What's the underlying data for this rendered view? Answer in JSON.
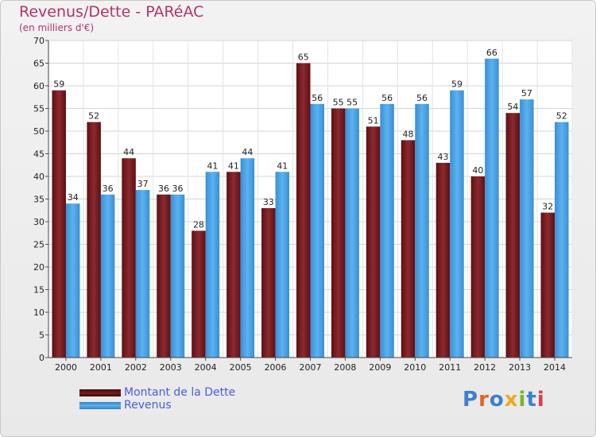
{
  "title": "Revenus/Dette - PARéAC",
  "subtitle": "(en milliers d'€)",
  "logo_text": "Proxiti",
  "colors": {
    "dette": "#7a1a1f",
    "revenus": "#4aa3e6",
    "title": "#b0346a",
    "legend_text": "#4a5de0"
  },
  "chart_data": {
    "type": "bar",
    "title": "Revenus/Dette - PARéAC",
    "subtitle": "(en milliers d'€)",
    "categories": [
      "2000",
      "2001",
      "2002",
      "2003",
      "2004",
      "2005",
      "2006",
      "2007",
      "2008",
      "2009",
      "2010",
      "2011",
      "2012",
      "2013",
      "2014"
    ],
    "series": [
      {
        "name": "Montant de la Dette",
        "values": [
          59,
          52,
          44,
          36,
          28,
          41,
          33,
          65,
          55,
          51,
          48,
          43,
          40,
          54,
          32
        ]
      },
      {
        "name": "Revenus",
        "values": [
          34,
          36,
          37,
          36,
          41,
          44,
          41,
          56,
          55,
          56,
          56,
          59,
          66,
          57,
          52
        ]
      }
    ],
    "ylim": [
      0,
      70
    ],
    "yticks": [
      0,
      5,
      10,
      15,
      20,
      25,
      30,
      35,
      40,
      45,
      50,
      55,
      60,
      65,
      70
    ],
    "grid": true,
    "legend_position": "bottom-left"
  }
}
